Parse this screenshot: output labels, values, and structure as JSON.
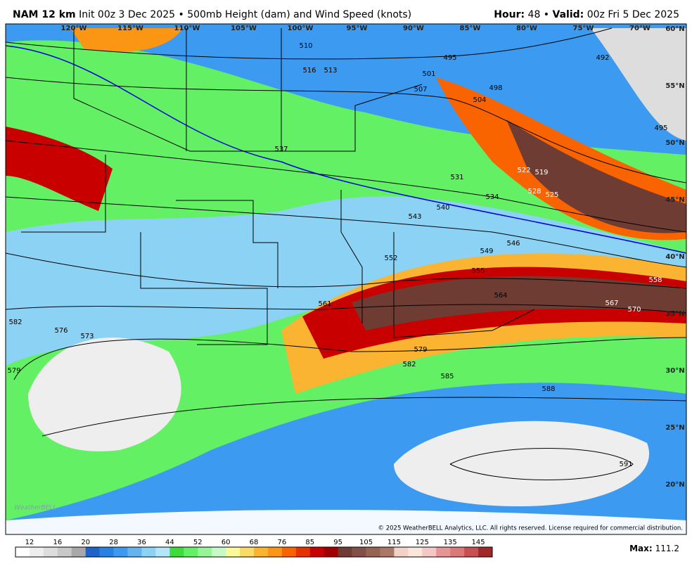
{
  "header": {
    "model": "NAM 12 km",
    "init": "Init 00z 3 Dec 2025 • 500mb Height (dam) and Wind Speed (knots)",
    "hour_label": "Hour:",
    "hour": "48 •",
    "valid_label": "Valid:",
    "valid": "00z Fri 5 Dec 2025"
  },
  "longitudes": [
    "120°W",
    "115°W",
    "110°W",
    "105°W",
    "100°W",
    "95°W",
    "90°W",
    "85°W",
    "80°W",
    "75°W",
    "70°W"
  ],
  "latitudes": [
    "60°N",
    "55°N",
    "50°N",
    "45°N",
    "40°N",
    "35°N",
    "30°N",
    "25°N",
    "20°N"
  ],
  "contours": [
    "510",
    "516",
    "513",
    "495",
    "501",
    "507",
    "498",
    "504",
    "492",
    "495",
    "537",
    "522",
    "519",
    "528",
    "525",
    "531",
    "534",
    "540",
    "543",
    "546",
    "549",
    "552",
    "555",
    "558",
    "561",
    "564",
    "567",
    "570",
    "573",
    "576",
    "582",
    "579",
    "582",
    "579",
    "585",
    "588",
    "591"
  ],
  "logo": "WeatherBELL",
  "copyright": "© 2025 WeatherBELL Analytics, LLC. All rights reserved. License required for commercial distribution.",
  "legend": {
    "labels": [
      "12",
      "16",
      "20",
      "28",
      "36",
      "44",
      "52",
      "60",
      "68",
      "76",
      "85",
      "95",
      "105",
      "115",
      "125",
      "135",
      "145"
    ],
    "colors": [
      "#ffffff",
      "#eeeeee",
      "#dddddd",
      "#c8c8c8",
      "#a8a8a8",
      "#1e64c8",
      "#2882e6",
      "#3c9bf0",
      "#64b4f0",
      "#8cd2f5",
      "#b4e6fa",
      "#3cdc3c",
      "#64f064",
      "#96f596",
      "#c8fac8",
      "#fafa96",
      "#fadc64",
      "#fab432",
      "#fa9614",
      "#fa6400",
      "#e63200",
      "#c80000",
      "#a00000",
      "#6e3c32",
      "#825046",
      "#966450",
      "#aa7864",
      "#f0d2c8",
      "#fae6dc",
      "#f5c8c8",
      "#e69696",
      "#dc7878",
      "#c85050",
      "#a02828"
    ]
  },
  "max": {
    "label": "Max:",
    "value": "111.2"
  }
}
